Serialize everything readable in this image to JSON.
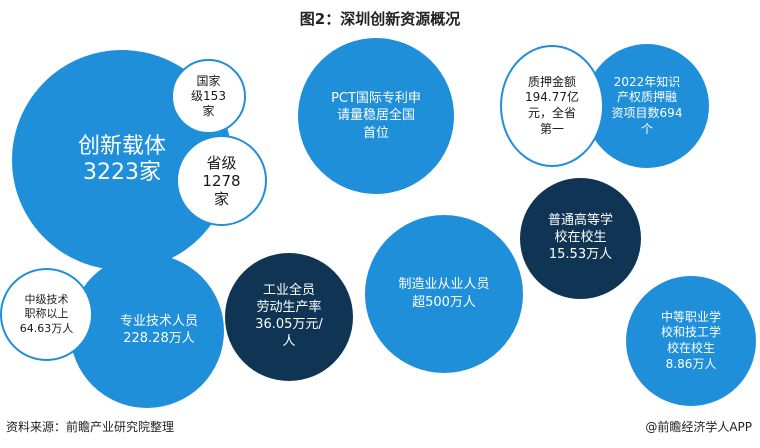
{
  "title": "图2：深圳创新资源概况",
  "bubbles": {
    "innovation_carriers": "创新载体\n3223家",
    "national_level": "国家\n级153\n家",
    "provincial_level": "省级\n1278\n家",
    "pct": "PCT国际专利申\n请量稳居全国\n首位",
    "pledge_amount": "质押金额\n194.77亿\n元，全省\n第一",
    "ip_pledge_projects": "2022年知识\n产权质押融\n资项目数694\n个",
    "general_college_students": "普通高等学\n校在校生\n15.53万人",
    "manufacturing_workers": "制造业从业人员\n超500万人",
    "industrial_productivity": "工业全员\n劳动生产率\n36.05万元/\n人",
    "mid_level_tech": "中级技术\n职称以上\n64.63万人",
    "professional_tech": "专业技术人员\n228.28万人",
    "vocational_students": "中等职业学\n校和技工学\n校在校生\n8.86万人"
  },
  "footer": {
    "source": "资料来源：前瞻产业研究院整理",
    "brand": "@前瞻经济学人APP"
  },
  "colors": {
    "blue": "#1f8fd9",
    "navy": "#0f3454",
    "outline": "#1f8fd9"
  }
}
